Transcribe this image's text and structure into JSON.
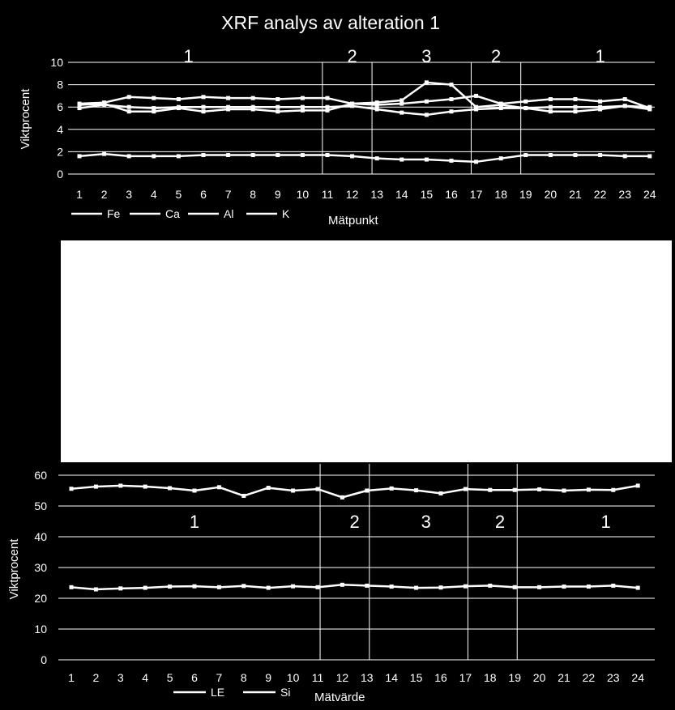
{
  "chart_data": [
    {
      "type": "line",
      "title": "XRF analys av alteration 1",
      "xlabel": "Mätpunkt",
      "ylabel": "Viktprocent",
      "ylim": [
        0,
        10
      ],
      "yticks": [
        0,
        2,
        4,
        6,
        8,
        10
      ],
      "x": [
        1,
        2,
        3,
        4,
        5,
        6,
        7,
        8,
        9,
        10,
        11,
        12,
        13,
        14,
        15,
        16,
        17,
        18,
        19,
        20,
        21,
        22,
        23,
        24
      ],
      "grid": true,
      "legend": "bottom-left",
      "zone_boundaries_after_point": [
        10.8,
        12.8,
        16.8,
        18.8
      ],
      "zone_labels": [
        "1",
        "2",
        "3",
        "2",
        "1"
      ],
      "zone_label_x": [
        5.4,
        12,
        15,
        17.8,
        22
      ],
      "series": [
        {
          "name": "Fe",
          "values": [
            6.3,
            6.4,
            6.9,
            6.8,
            6.7,
            6.9,
            6.8,
            6.8,
            6.7,
            6.8,
            6.8,
            6.3,
            6.2,
            6.3,
            6.5,
            6.7,
            7.0,
            6.3,
            6.5,
            6.7,
            6.7,
            6.5,
            6.7,
            5.9
          ]
        },
        {
          "name": "Ca",
          "values": [
            6.2,
            6.3,
            5.6,
            5.6,
            5.9,
            5.6,
            5.8,
            5.8,
            5.6,
            5.7,
            5.7,
            6.3,
            6.4,
            6.6,
            8.2,
            8.0,
            6.0,
            6.2,
            5.9,
            5.6,
            5.6,
            5.8,
            6.1,
            5.8
          ]
        },
        {
          "name": "Al",
          "values": [
            5.9,
            6.2,
            6.0,
            5.9,
            6.0,
            6.0,
            6.0,
            6.0,
            6.0,
            6.0,
            6.0,
            6.1,
            5.8,
            5.5,
            5.3,
            5.6,
            5.8,
            5.9,
            5.9,
            6.0,
            6.0,
            6.0,
            6.1,
            6.0
          ]
        },
        {
          "name": "K",
          "values": [
            1.6,
            1.8,
            1.6,
            1.6,
            1.6,
            1.7,
            1.7,
            1.7,
            1.7,
            1.7,
            1.7,
            1.6,
            1.4,
            1.3,
            1.3,
            1.2,
            1.1,
            1.4,
            1.7,
            1.7,
            1.7,
            1.7,
            1.6,
            1.6
          ]
        }
      ]
    },
    {
      "type": "line",
      "xlabel": "Mätvärde",
      "ylabel": "Viktprocent",
      "ylim": [
        0,
        60
      ],
      "yticks": [
        0,
        10,
        20,
        30,
        40,
        50,
        60
      ],
      "x": [
        1,
        2,
        3,
        4,
        5,
        6,
        7,
        8,
        9,
        10,
        11,
        12,
        13,
        14,
        15,
        16,
        17,
        18,
        19,
        20,
        21,
        22,
        23,
        24
      ],
      "grid": true,
      "legend": "bottom-left",
      "zone_boundaries_after_point": [
        11.1,
        13.1,
        17.1,
        19.1
      ],
      "zone_labels": [
        "1",
        "2",
        "3",
        "2",
        "1"
      ],
      "zone_label_x": [
        6.0,
        12.5,
        15.4,
        18.4,
        22.7
      ],
      "series": [
        {
          "name": "LE",
          "values": [
            23.6,
            22.9,
            23.2,
            23.4,
            23.8,
            23.9,
            23.6,
            24.0,
            23.4,
            23.9,
            23.6,
            24.4,
            24.1,
            23.8,
            23.4,
            23.5,
            23.9,
            24.1,
            23.6,
            23.6,
            23.8,
            23.8,
            24.1,
            23.4
          ]
        },
        {
          "name": "Si",
          "values": [
            55.6,
            56.3,
            56.6,
            56.3,
            55.8,
            55.0,
            56.1,
            53.3,
            55.9,
            55.0,
            55.5,
            52.8,
            55.0,
            55.7,
            55.1,
            54.1,
            55.5,
            55.2,
            55.2,
            55.4,
            55.0,
            55.3,
            55.2,
            56.6
          ]
        }
      ]
    }
  ]
}
